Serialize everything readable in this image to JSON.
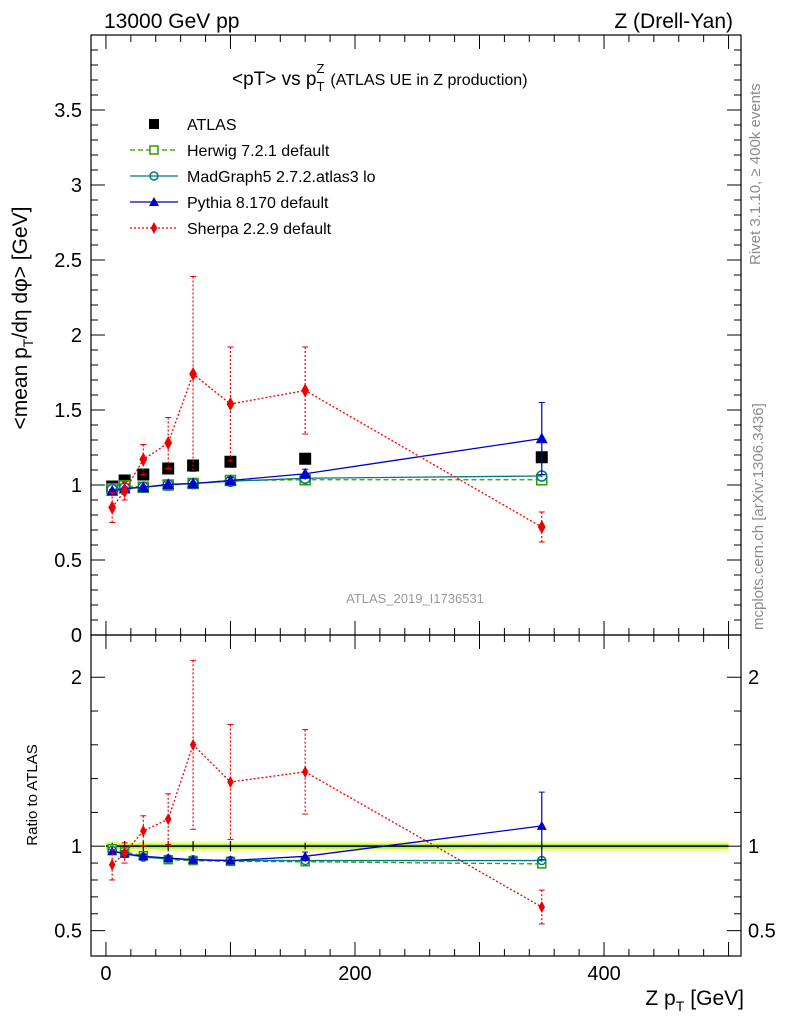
{
  "header": {
    "left": "13000 GeV pp",
    "right": "Z (Drell-Yan)"
  },
  "title": {
    "prefix": "<pT> vs p",
    "sub": "T",
    "sup": "Z",
    "suffix": "(ATLAS UE in Z production)"
  },
  "ylabel_main": {
    "a": "<mean p",
    "sub": "T",
    "b": "/dη dφ> [GeV]"
  },
  "ylabel_ratio": "Ratio to ATLAS",
  "xlabel": {
    "a": "Z p",
    "sub": "T",
    "b": "[GeV]"
  },
  "side_text": {
    "rivet": "Rivet 3.1.10, ≥ 400k events",
    "mcplots": "mcplots.cern.ch [arXiv:1306.3436]"
  },
  "analysis_id": "ATLAS_2019_I1736531",
  "colors": {
    "atlas": "#000000",
    "herwig": "#339900",
    "madgraph": "#007b7b",
    "pythia": "#0000cc",
    "sherpa": "#ee0000",
    "band_outer": "#ffff88",
    "band_inner": "#aaee66"
  },
  "chart_data": {
    "type": "scatter",
    "x_range": [
      -12,
      510
    ],
    "x_ticks": [
      0,
      200,
      400
    ],
    "main": {
      "y_range": [
        0,
        4
      ],
      "y_ticks": [
        0,
        0.5,
        1,
        1.5,
        2,
        2.5,
        3,
        3.5
      ],
      "y_tick_labels": [
        "0",
        "0.5",
        "1",
        "1.5",
        "2",
        "2.5",
        "3",
        "3.5"
      ]
    },
    "ratio": {
      "y_range": [
        0.35,
        2.25
      ],
      "y_ticks": [
        0.5,
        1,
        2
      ],
      "y_tick_labels": [
        "0.5",
        "1",
        "2"
      ]
    },
    "series": [
      {
        "name": "ATLAS",
        "key": "atlas",
        "marker": "square-filled",
        "line": "none",
        "x": [
          5,
          15,
          30,
          50,
          70,
          100,
          160,
          350
        ],
        "y": [
          0.99,
          1.03,
          1.07,
          1.11,
          1.13,
          1.155,
          1.175,
          1.185
        ],
        "err": [
          0.01,
          0.01,
          0.01,
          0.01,
          0.01,
          0.01,
          0.01,
          0.015
        ],
        "ratio": [
          1,
          1,
          1,
          1,
          1,
          1,
          1,
          1
        ],
        "ratio_err": [
          0.02,
          0.03,
          0.03,
          0.03,
          0.03,
          0.03,
          0.02,
          0.02
        ]
      },
      {
        "name": "Herwig 7.2.1 default",
        "key": "herwig",
        "marker": "square-open",
        "line": "dashed",
        "x": [
          5,
          15,
          30,
          50,
          70,
          100,
          160,
          350
        ],
        "y": [
          0.975,
          0.995,
          0.985,
          1.0,
          1.01,
          1.03,
          1.035,
          1.035
        ],
        "err": [
          0.01,
          0.01,
          0.01,
          0.01,
          0.01,
          0.01,
          0.01,
          0.01
        ],
        "ratio": [
          0.985,
          0.966,
          0.944,
          0.92,
          0.915,
          0.91,
          0.908,
          0.895
        ],
        "ratio_err": [
          0.01,
          0.01,
          0.01,
          0.01,
          0.01,
          0.01,
          0.01,
          0.01
        ]
      },
      {
        "name": "MadGraph5 2.7.2.atlas3 lo",
        "key": "madgraph",
        "marker": "circle-open",
        "line": "solid",
        "x": [
          5,
          15,
          30,
          50,
          70,
          100,
          160,
          350
        ],
        "y": [
          0.97,
          0.98,
          0.985,
          1.0,
          1.01,
          1.025,
          1.045,
          1.06
        ],
        "err": [
          0.01,
          0.01,
          0.01,
          0.01,
          0.01,
          0.01,
          0.01,
          0.01
        ],
        "ratio": [
          0.975,
          0.955,
          0.935,
          0.925,
          0.92,
          0.915,
          0.915,
          0.915
        ],
        "ratio_err": [
          0.01,
          0.01,
          0.01,
          0.01,
          0.01,
          0.01,
          0.01,
          0.01
        ]
      },
      {
        "name": "Pythia 8.170 default",
        "key": "pythia",
        "marker": "triangle-filled",
        "line": "solid",
        "x": [
          5,
          15,
          30,
          50,
          70,
          100,
          160,
          350
        ],
        "y": [
          0.96,
          0.975,
          0.985,
          1.005,
          1.01,
          1.03,
          1.075,
          1.31
        ],
        "err": [
          0.01,
          0.01,
          0.01,
          0.01,
          0.01,
          0.02,
          0.03,
          0.24
        ],
        "ratio": [
          0.97,
          0.955,
          0.94,
          0.93,
          0.92,
          0.915,
          0.94,
          1.12
        ],
        "ratio_err": [
          0.01,
          0.01,
          0.01,
          0.01,
          0.01,
          0.015,
          0.025,
          0.2
        ]
      },
      {
        "name": "Sherpa 2.2.9 default",
        "key": "sherpa",
        "marker": "diamond-filled",
        "line": "dotted",
        "x": [
          5,
          15,
          30,
          50,
          70,
          100,
          160,
          350
        ],
        "y": [
          0.85,
          0.96,
          1.17,
          1.28,
          1.74,
          1.54,
          1.63,
          0.72
        ],
        "err": [
          0.1,
          0.06,
          0.1,
          0.17,
          0.65,
          0.38,
          0.29,
          0.1
        ],
        "ratio": [
          0.89,
          0.96,
          1.09,
          1.16,
          1.6,
          1.38,
          1.44,
          0.64
        ],
        "ratio_err": [
          0.09,
          0.06,
          0.09,
          0.15,
          0.5,
          0.34,
          0.25,
          0.1
        ]
      }
    ]
  }
}
